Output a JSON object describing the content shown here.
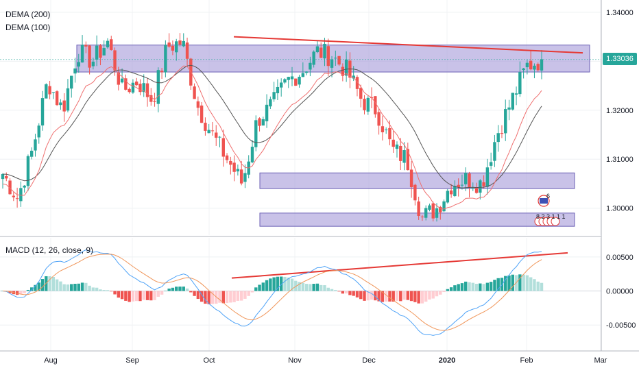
{
  "legend": {
    "dema200": "DEMA (200)",
    "dema100": "DEMA (100)",
    "macd": "MACD (12, 26, close, 9)"
  },
  "price_label": "1.33036",
  "event_markers": {
    "flag_count": "6",
    "numbers": "8 2 3 1 1 1"
  },
  "colors": {
    "up": "#26a69a",
    "down": "#ef5350",
    "zone_fill": "#9c8fd6",
    "trendline": "#e53935",
    "dema200": "#555555",
    "dema100": "#ef6f6f",
    "macd_line": "#4fa3f7",
    "signal_line": "#f0965a",
    "hist_up_strong": "#26a69a",
    "hist_up_weak": "#b2dfdb",
    "hist_down_strong": "#ef5350",
    "hist_down_weak": "#ffcdd2"
  },
  "chart_data": {
    "type": "candlestick",
    "x_labels": [
      "Aug",
      "Sep",
      "Oct",
      "Nov",
      "Dec",
      "2020",
      "Feb",
      "Mar"
    ],
    "price_axis": {
      "ylim": [
        1.2945,
        1.3425
      ],
      "ticks": [
        "1.34000",
        "1.33000",
        "1.32000",
        "1.31000",
        "1.30000"
      ]
    },
    "macd_axis": {
      "ylim": [
        -0.0088,
        0.0078
      ],
      "ticks": [
        "0.00500",
        "0.00000",
        "-0.00500"
      ]
    },
    "zones": [
      {
        "from": 1.3278,
        "to": 1.3333
      },
      {
        "from": 1.304,
        "to": 1.3072
      },
      {
        "from": 1.2963,
        "to": 1.299
      }
    ],
    "price_trendline": {
      "from": 1.335,
      "to": 1.3317
    },
    "macd_trendline": {
      "from": 0.0019,
      "to": 0.0056
    },
    "price_keypoints": [
      1.307,
      1.302,
      1.312,
      1.326,
      1.32,
      1.332,
      1.33,
      1.334,
      1.324,
      1.326,
      1.322,
      1.333,
      1.334,
      1.321,
      1.315,
      1.31,
      1.305,
      1.318,
      1.321,
      1.326,
      1.328,
      1.332,
      1.331,
      1.328,
      1.322,
      1.32,
      1.312,
      1.31,
      1.298,
      1.3,
      1.305,
      1.306,
      1.305,
      1.315,
      1.322,
      1.329,
      1.3304
    ]
  }
}
